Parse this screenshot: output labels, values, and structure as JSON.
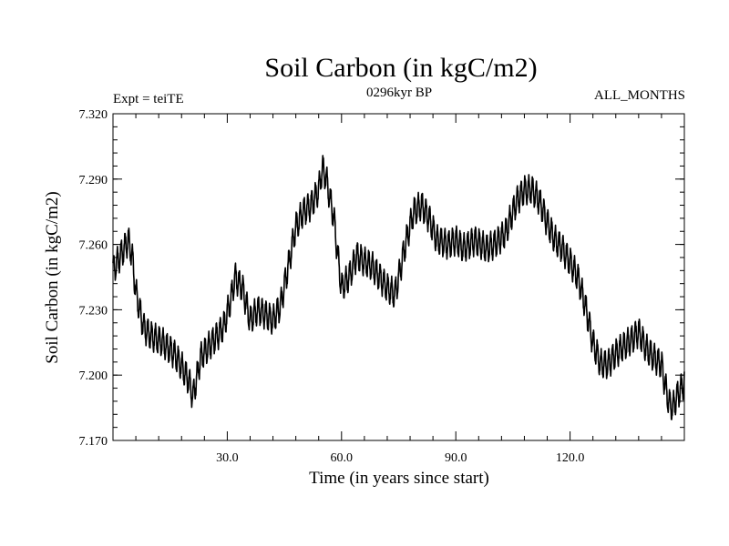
{
  "chart_data": {
    "type": "line",
    "title": "Soil Carbon (in kgC/m2)",
    "subtitle_left": "Expt = teiTE",
    "subtitle_center": "0296kyr BP",
    "subtitle_right": "ALL_MONTHS",
    "xlabel": "Time (in years since start)",
    "ylabel": "Soil Carbon (in kgC/m2)",
    "xlim": [
      0,
      150
    ],
    "ylim": [
      7.17,
      7.32
    ],
    "x_ticks": [
      30,
      60,
      90,
      120
    ],
    "x_tick_labels": [
      "30.0",
      "60.0",
      "90.0",
      "120.0"
    ],
    "y_ticks": [
      7.17,
      7.2,
      7.23,
      7.26,
      7.29,
      7.32
    ],
    "y_tick_labels": [
      "7.170",
      "7.200",
      "7.230",
      "7.260",
      "7.290",
      "7.320"
    ],
    "series_style": "monthly values with a strong annual cycle (amplitude about 0.006 kgC/m2)",
    "trend_x": [
      0,
      2,
      4,
      5,
      6,
      8,
      10,
      13,
      16,
      18,
      20,
      21,
      23,
      26,
      29,
      31,
      32,
      34,
      36,
      38,
      40,
      42,
      44,
      46,
      48,
      50,
      52,
      54,
      55,
      56,
      58,
      59,
      60,
      62,
      64,
      66,
      68,
      70,
      72,
      74,
      75,
      77,
      79,
      81,
      83,
      85,
      88,
      90,
      92,
      95,
      98,
      100,
      103,
      106,
      108,
      110,
      112,
      114,
      116,
      118,
      120,
      122,
      124,
      126,
      128,
      130,
      132,
      134,
      136,
      138,
      140,
      142,
      144,
      145,
      146,
      147,
      148,
      150
    ],
    "trend_y": [
      7.248,
      7.255,
      7.262,
      7.255,
      7.238,
      7.222,
      7.218,
      7.215,
      7.21,
      7.204,
      7.197,
      7.19,
      7.208,
      7.215,
      7.222,
      7.235,
      7.245,
      7.24,
      7.225,
      7.23,
      7.228,
      7.225,
      7.232,
      7.25,
      7.268,
      7.275,
      7.278,
      7.285,
      7.295,
      7.29,
      7.272,
      7.255,
      7.24,
      7.245,
      7.255,
      7.252,
      7.25,
      7.245,
      7.24,
      7.237,
      7.245,
      7.262,
      7.275,
      7.278,
      7.272,
      7.262,
      7.26,
      7.262,
      7.258,
      7.262,
      7.258,
      7.26,
      7.265,
      7.28,
      7.285,
      7.285,
      7.28,
      7.27,
      7.262,
      7.258,
      7.252,
      7.245,
      7.232,
      7.215,
      7.205,
      7.205,
      7.21,
      7.213,
      7.216,
      7.22,
      7.212,
      7.208,
      7.205,
      7.195,
      7.187,
      7.185,
      7.19,
      7.197
    ],
    "seasonal_amplitude": 0.006
  }
}
